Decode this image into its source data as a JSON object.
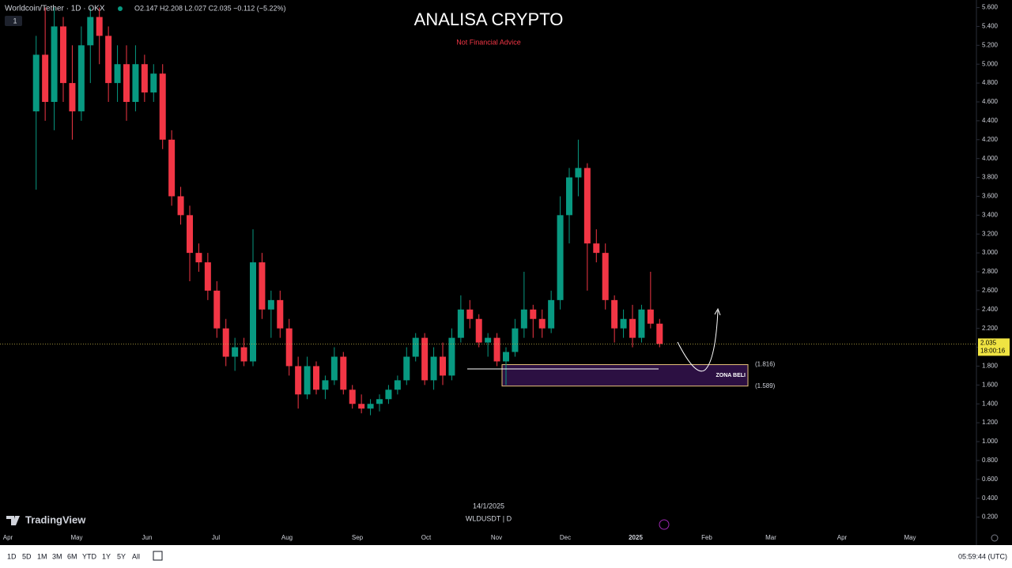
{
  "header": {
    "symbol": "Worldcoin/Tether · 1D · OKX",
    "ohlc": "O2.147 H2.208 L2.027 C2.035 −0.112 (−5.22%)",
    "interval_badge": "1"
  },
  "chart_data": {
    "type": "candlestick",
    "title": "ANALISA CRYPTO",
    "subtitle": "Not Financial Advice",
    "up_color": "#089981",
    "down_color": "#f23645",
    "ohlc": [
      [
        4.5,
        5.3,
        3.67,
        5.1
      ],
      [
        5.1,
        5.6,
        4.4,
        4.6
      ],
      [
        4.6,
        5.6,
        4.3,
        5.4
      ],
      [
        5.4,
        5.5,
        4.6,
        4.8
      ],
      [
        4.8,
        5.2,
        4.2,
        4.5
      ],
      [
        4.5,
        5.4,
        4.4,
        5.2
      ],
      [
        5.2,
        5.6,
        4.8,
        5.5
      ],
      [
        5.5,
        5.6,
        5.0,
        5.3
      ],
      [
        5.3,
        5.4,
        4.6,
        4.8
      ],
      [
        4.8,
        5.2,
        4.6,
        5.0
      ],
      [
        5.0,
        5.2,
        4.4,
        4.6
      ],
      [
        4.6,
        5.2,
        4.5,
        5.0
      ],
      [
        5.0,
        5.1,
        4.6,
        4.7
      ],
      [
        4.7,
        5.0,
        4.6,
        4.9
      ],
      [
        4.9,
        5.0,
        4.1,
        4.2
      ],
      [
        4.2,
        4.3,
        3.5,
        3.6
      ],
      [
        3.6,
        3.7,
        3.3,
        3.4
      ],
      [
        3.4,
        3.5,
        2.7,
        3.0
      ],
      [
        3.0,
        3.1,
        2.8,
        2.9
      ],
      [
        2.9,
        3.0,
        2.5,
        2.6
      ],
      [
        2.6,
        2.7,
        2.1,
        2.2
      ],
      [
        2.2,
        2.3,
        1.8,
        1.9
      ],
      [
        1.9,
        2.1,
        1.75,
        2.0
      ],
      [
        2.0,
        2.1,
        1.8,
        1.85
      ],
      [
        1.85,
        3.25,
        1.8,
        2.9
      ],
      [
        2.9,
        3.0,
        2.3,
        2.4
      ],
      [
        2.4,
        2.6,
        2.1,
        2.5
      ],
      [
        2.5,
        2.6,
        2.1,
        2.2
      ],
      [
        2.2,
        2.3,
        1.7,
        1.8
      ],
      [
        1.8,
        1.9,
        1.35,
        1.5
      ],
      [
        1.5,
        1.9,
        1.45,
        1.8
      ],
      [
        1.8,
        1.85,
        1.5,
        1.55
      ],
      [
        1.55,
        1.7,
        1.45,
        1.65
      ],
      [
        1.65,
        2.0,
        1.6,
        1.9
      ],
      [
        1.9,
        1.95,
        1.5,
        1.55
      ],
      [
        1.55,
        1.6,
        1.35,
        1.4
      ],
      [
        1.4,
        1.5,
        1.3,
        1.35
      ],
      [
        1.35,
        1.45,
        1.28,
        1.4
      ],
      [
        1.4,
        1.5,
        1.32,
        1.45
      ],
      [
        1.45,
        1.6,
        1.4,
        1.55
      ],
      [
        1.55,
        1.7,
        1.5,
        1.65
      ],
      [
        1.65,
        2.0,
        1.6,
        1.9
      ],
      [
        1.9,
        2.15,
        1.85,
        2.1
      ],
      [
        2.1,
        2.15,
        1.6,
        1.65
      ],
      [
        1.65,
        2.0,
        1.55,
        1.9
      ],
      [
        1.9,
        2.05,
        1.6,
        1.7
      ],
      [
        1.7,
        2.2,
        1.65,
        2.1
      ],
      [
        2.1,
        2.55,
        2.05,
        2.4
      ],
      [
        2.4,
        2.5,
        2.2,
        2.3
      ],
      [
        2.3,
        2.35,
        2.0,
        2.05
      ],
      [
        2.05,
        2.15,
        1.9,
        2.1
      ],
      [
        2.1,
        2.15,
        1.8,
        1.85
      ],
      [
        1.85,
        2.0,
        1.6,
        1.95
      ],
      [
        1.95,
        2.3,
        1.9,
        2.2
      ],
      [
        2.2,
        2.8,
        2.1,
        2.4
      ],
      [
        2.4,
        2.45,
        2.1,
        2.3
      ],
      [
        2.3,
        2.4,
        2.1,
        2.2
      ],
      [
        2.2,
        2.6,
        2.15,
        2.5
      ],
      [
        2.5,
        3.6,
        2.4,
        3.4
      ],
      [
        3.4,
        3.9,
        3.1,
        3.8
      ],
      [
        3.8,
        4.2,
        3.6,
        3.9
      ],
      [
        3.9,
        3.95,
        2.6,
        3.1
      ],
      [
        3.1,
        3.25,
        2.9,
        3.0
      ],
      [
        3.0,
        3.1,
        2.4,
        2.5
      ],
      [
        2.5,
        2.55,
        2.05,
        2.2
      ],
      [
        2.2,
        2.4,
        2.1,
        2.3
      ],
      [
        2.3,
        2.45,
        2.0,
        2.1
      ],
      [
        2.1,
        2.45,
        2.05,
        2.4
      ],
      [
        2.4,
        2.8,
        2.2,
        2.25
      ],
      [
        2.25,
        2.3,
        2.0,
        2.035
      ]
    ],
    "ylim": [
      0.05,
      5.68
    ],
    "yticks": [
      {
        "value": 0.2,
        "label": "0.200"
      },
      {
        "value": 0.4,
        "label": "0.400"
      },
      {
        "value": 0.6,
        "label": "0.600"
      },
      {
        "value": 0.8,
        "label": "0.800"
      },
      {
        "value": 1.0,
        "label": "1.000"
      },
      {
        "value": 1.2,
        "label": "1.200"
      },
      {
        "value": 1.4,
        "label": "1.400"
      },
      {
        "value": 1.6,
        "label": "1.600"
      },
      {
        "value": 1.8,
        "label": "1.800"
      },
      {
        "value": 2.0,
        "label": "2.000"
      },
      {
        "value": 2.2,
        "label": "2.200"
      },
      {
        "value": 2.4,
        "label": "2.400"
      },
      {
        "value": 2.6,
        "label": "2.600"
      },
      {
        "value": 2.8,
        "label": "2.800"
      },
      {
        "value": 3.0,
        "label": "3.000"
      },
      {
        "value": 3.2,
        "label": "3.200"
      },
      {
        "value": 3.4,
        "label": "3.400"
      },
      {
        "value": 3.6,
        "label": "3.600"
      },
      {
        "value": 3.8,
        "label": "3.800"
      },
      {
        "value": 4.0,
        "label": "4.000"
      },
      {
        "value": 4.2,
        "label": "4.200"
      },
      {
        "value": 4.4,
        "label": "4.400"
      },
      {
        "value": 4.6,
        "label": "4.600"
      },
      {
        "value": 4.8,
        "label": "4.800"
      },
      {
        "value": 5.0,
        "label": "5.000"
      },
      {
        "value": 5.2,
        "label": "5.200"
      },
      {
        "value": 5.4,
        "label": "5.400"
      },
      {
        "value": 5.6,
        "label": "5.600"
      }
    ],
    "xticks": [
      "Apr",
      "May",
      "Jun",
      "Jul",
      "Aug",
      "Sep",
      "Oct",
      "Nov",
      "Dec",
      "2025",
      "Feb",
      "Mar",
      "Apr",
      "May"
    ],
    "last_price": {
      "value": 2.035,
      "label": "2.035",
      "countdown": "18:00:16"
    },
    "zone": {
      "label": "ZONA BELI",
      "top": 1.816,
      "bottom": 1.589,
      "top_label": "(1.816)",
      "bottom_label": "(1.589)"
    },
    "date_label": "14/1/2025",
    "ticker_label": "WLDUSDT | D",
    "watermark": "TradingView"
  },
  "toolbar": {
    "ranges": [
      "1D",
      "5D",
      "1M",
      "3M",
      "6M",
      "YTD",
      "1Y",
      "5Y",
      "All"
    ],
    "clock": "05:59:44 (UTC)"
  }
}
